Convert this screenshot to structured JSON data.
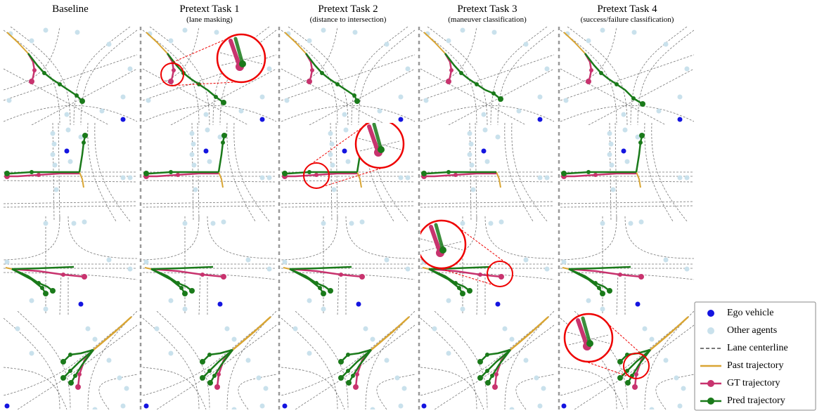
{
  "columns": [
    {
      "title": "Baseline"
    },
    {
      "title": "Pretext Task 1",
      "subtitle": "(lane masking)"
    },
    {
      "title": "Pretext Task 2",
      "subtitle": "(distance to intersection)"
    },
    {
      "title": "Pretext Task 3",
      "subtitle": "(maneuver classification)"
    },
    {
      "title": "Pretext Task 4",
      "subtitle": "(success/failure classification)"
    }
  ],
  "legend": [
    {
      "label": "Ego vehicle"
    },
    {
      "label": "Other agents"
    },
    {
      "label": "Lane centerline"
    },
    {
      "label": "Past trajectory"
    },
    {
      "label": "GT trajectory"
    },
    {
      "label": "Pred trajectory"
    }
  ]
}
